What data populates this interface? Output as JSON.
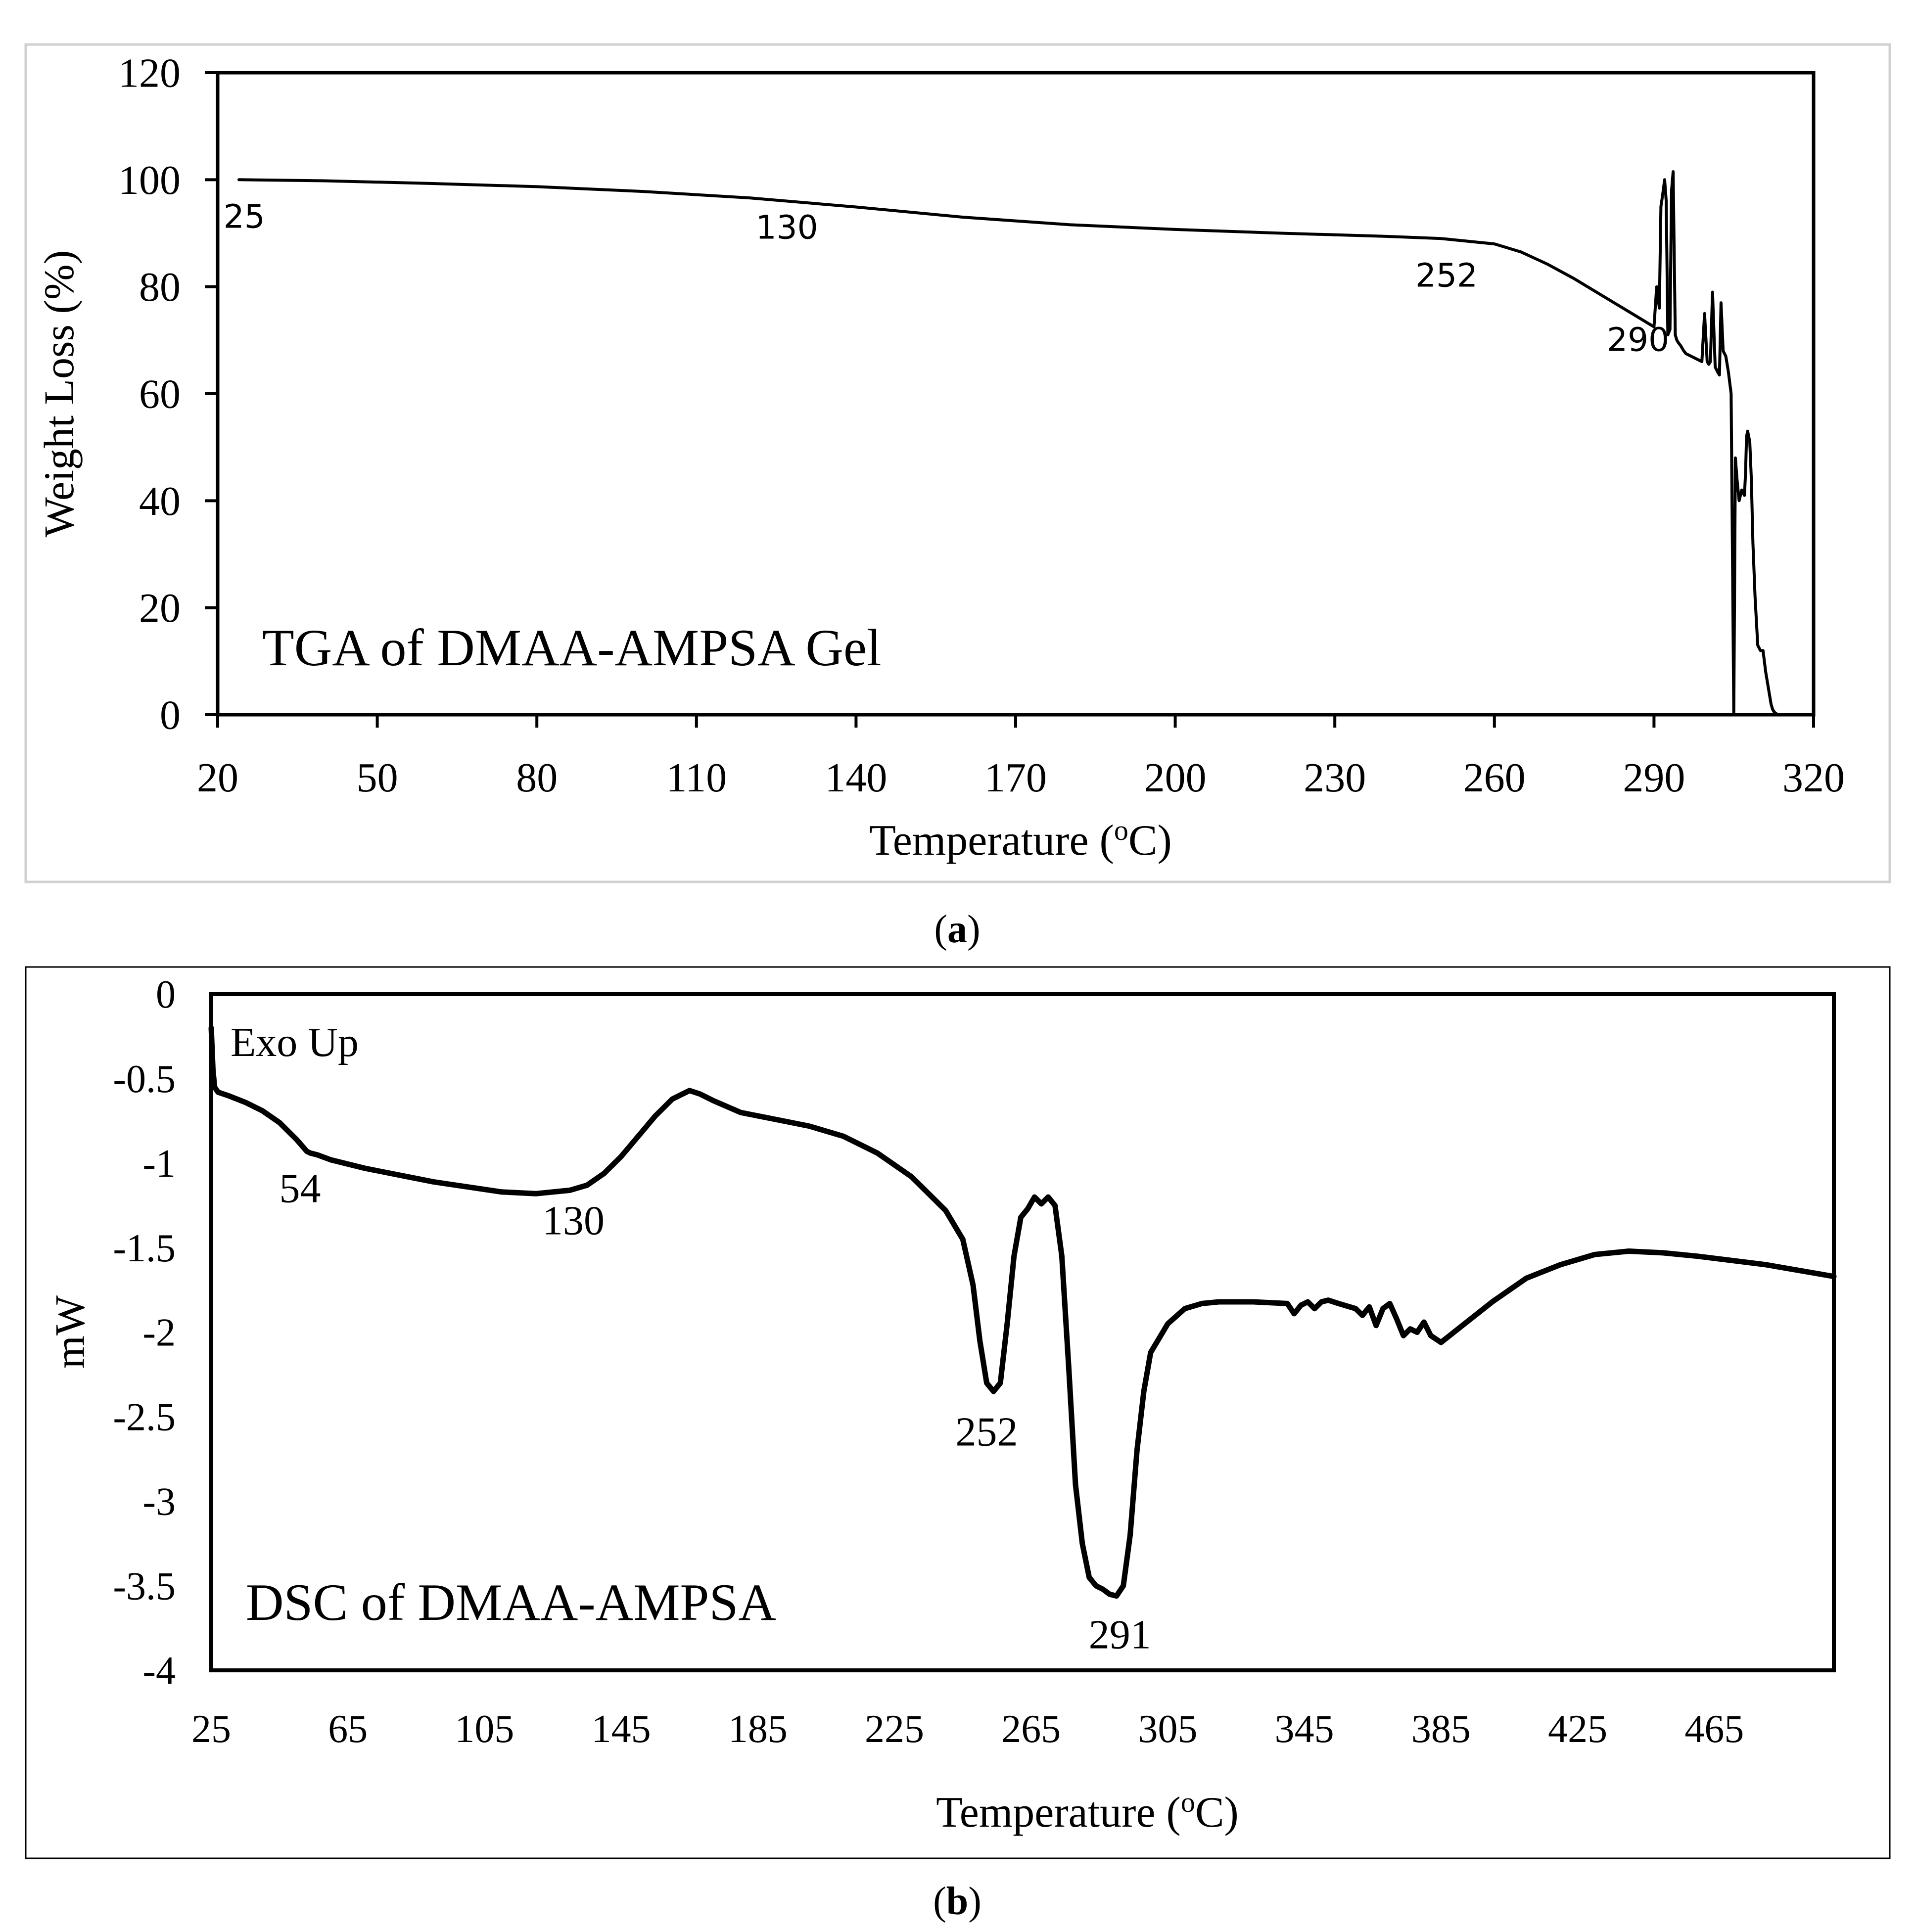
{
  "chart_data": [
    {
      "id": "tga",
      "type": "line",
      "title": "TGA of DMAA-AMPSA Gel",
      "panel_label": "a",
      "xlabel": "Temperature (",
      "xlabel_sup": "o",
      "xlabel_end": "C)",
      "ylabel": "Weight Loss (%)",
      "xlim": [
        20,
        320
      ],
      "ylim": [
        0,
        120
      ],
      "xticks": [
        "20",
        "50",
        "80",
        "110",
        "140",
        "170",
        "200",
        "230",
        "260",
        "290",
        "320"
      ],
      "yticks": [
        "0",
        "20",
        "40",
        "60",
        "80",
        "100",
        "120"
      ],
      "annotations": [
        {
          "text": "25",
          "x": 25,
          "y": 91
        },
        {
          "text": "130",
          "x": 127,
          "y": 89
        },
        {
          "text": "252",
          "x": 251,
          "y": 80
        },
        {
          "text": "290",
          "x": 287,
          "y": 68
        }
      ],
      "series": [
        {
          "name": "TGA",
          "x": [
            24,
            40,
            60,
            80,
            100,
            120,
            140,
            160,
            170,
            180,
            200,
            220,
            240,
            250,
            260,
            265,
            270,
            275,
            280,
            285,
            290,
            290.5,
            291,
            291.3,
            291.6,
            292,
            292.3,
            292.6,
            293,
            293.3,
            293.6,
            294,
            294.3,
            294.6,
            295,
            295.3,
            295.6,
            296,
            299,
            299.5,
            300,
            300.3,
            300.6,
            301,
            301.5,
            302,
            302.3,
            302.6,
            303,
            303.5,
            304,
            304.5,
            305,
            305.3,
            305.6,
            306,
            306.5,
            307,
            307.2,
            307.4,
            307.6,
            308,
            308.3,
            308.6,
            309,
            309.5,
            310,
            310.5,
            311,
            311.5,
            312,
            312.3,
            312.6,
            313,
            313.2
          ],
          "y": [
            100,
            99.8,
            99.3,
            98.7,
            97.8,
            96.6,
            94.9,
            93,
            92.3,
            91.6,
            90.7,
            90,
            89.4,
            89,
            88,
            86.5,
            84.2,
            81.5,
            78.5,
            75.5,
            72.5,
            80,
            76,
            95,
            97,
            100,
            96,
            71,
            72,
            98,
            101.5,
            71,
            70,
            69.5,
            69,
            68.5,
            68,
            67.5,
            66,
            75,
            66,
            65.5,
            66,
            79,
            65,
            64,
            63.5,
            77,
            68,
            67,
            64,
            60,
            0,
            48,
            44,
            40,
            42,
            41,
            45,
            52,
            53,
            51,
            44,
            32,
            22,
            13,
            12,
            12,
            8,
            5,
            2,
            1,
            0.5,
            0.2,
            0
          ]
        }
      ]
    },
    {
      "id": "dsc",
      "type": "line",
      "title": "DSC of DMAA-AMPSA",
      "panel_label": "b",
      "corner_note": "Exo Up",
      "xlabel": "Temperature (",
      "xlabel_sup": "o",
      "xlabel_end": "C)",
      "ylabel": "mW",
      "xlim": [
        25,
        500
      ],
      "ylim": [
        -4,
        0
      ],
      "xticks": [
        "25",
        "65",
        "105",
        "145",
        "185",
        "225",
        "265",
        "305",
        "345",
        "385",
        "425",
        "465"
      ],
      "yticks": [
        "0",
        "-0.5",
        "-1",
        "-1.5",
        "-2",
        "-2.5",
        "-3",
        "-3.5",
        "-4"
      ],
      "annotations": [
        {
          "text": "54",
          "x": 51,
          "y": -1.23
        },
        {
          "text": "130",
          "x": 131,
          "y": -1.42
        },
        {
          "text": "252",
          "x": 252,
          "y": -2.67
        },
        {
          "text": "291",
          "x": 291,
          "y": -3.87
        }
      ],
      "series": [
        {
          "name": "DSC",
          "x": [
            25,
            25.5,
            26,
            27,
            30,
            35,
            40,
            45,
            50,
            53,
            54,
            56,
            60,
            70,
            80,
            90,
            100,
            110,
            120,
            130,
            135,
            140,
            145,
            150,
            155,
            160,
            165,
            168,
            172,
            180,
            190,
            200,
            210,
            220,
            230,
            240,
            245,
            248,
            250,
            252,
            254,
            256,
            258,
            260,
            262,
            264,
            266,
            268,
            270,
            272,
            274,
            276,
            278,
            280,
            282,
            284,
            286,
            288,
            290,
            292,
            294,
            296,
            298,
            300,
            305,
            310,
            315,
            320,
            330,
            340,
            342,
            344,
            346,
            348,
            350,
            352,
            355,
            360,
            362,
            364,
            366,
            368,
            370,
            372,
            374,
            376,
            378,
            380,
            382,
            385,
            390,
            400,
            410,
            420,
            430,
            440,
            450,
            460,
            480,
            500
          ],
          "y": [
            -0.2,
            -0.45,
            -0.55,
            -0.58,
            -0.6,
            -0.64,
            -0.69,
            -0.76,
            -0.86,
            -0.93,
            -0.94,
            -0.95,
            -0.98,
            -1.03,
            -1.07,
            -1.11,
            -1.14,
            -1.17,
            -1.18,
            -1.16,
            -1.13,
            -1.06,
            -0.96,
            -0.84,
            -0.72,
            -0.62,
            -0.57,
            -0.59,
            -0.63,
            -0.7,
            -0.74,
            -0.78,
            -0.84,
            -0.94,
            -1.08,
            -1.28,
            -1.45,
            -1.72,
            -2.05,
            -2.3,
            -2.35,
            -2.3,
            -1.95,
            -1.55,
            -1.32,
            -1.27,
            -1.2,
            -1.24,
            -1.2,
            -1.25,
            -1.55,
            -2.2,
            -2.9,
            -3.25,
            -3.45,
            -3.5,
            -3.52,
            -3.55,
            -3.56,
            -3.5,
            -3.2,
            -2.7,
            -2.35,
            -2.12,
            -1.95,
            -1.86,
            -1.83,
            -1.82,
            -1.82,
            -1.83,
            -1.89,
            -1.84,
            -1.82,
            -1.86,
            -1.82,
            -1.81,
            -1.83,
            -1.86,
            -1.9,
            -1.85,
            -1.96,
            -1.86,
            -1.83,
            -1.92,
            -2.02,
            -1.98,
            -2.0,
            -1.94,
            -2.02,
            -2.06,
            -1.98,
            -1.82,
            -1.68,
            -1.6,
            -1.54,
            -1.52,
            -1.53,
            -1.55,
            -1.6,
            -1.67
          ]
        }
      ]
    }
  ]
}
